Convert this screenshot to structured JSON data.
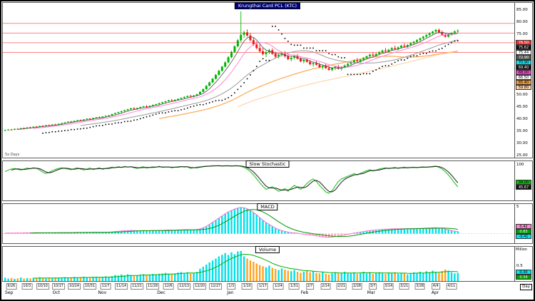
{
  "main_panel": {
    "title": "Krungthai Card PCL (KTC)",
    "corner_note": "5x Days",
    "y_axis": [
      "85.00",
      "80.00",
      "75.00",
      "70.00",
      "65.00",
      "60.00",
      "55.00",
      "50.00",
      "45.00",
      "40.00",
      "35.00",
      "30.00",
      "25.00"
    ],
    "value_boxes": [
      {
        "bg": "#ff2a2a",
        "fg": "#ffffff",
        "text": "76.50"
      },
      {
        "bg": "#111111",
        "fg": "#ffffff",
        "text": "75.62"
      },
      {
        "bg": "#ffffff",
        "fg": "#000000",
        "text": "75.44"
      },
      {
        "bg": "#555555",
        "fg": "#ffffff",
        "text": "72.90"
      },
      {
        "bg": "#00e5ee",
        "fg": "#000000",
        "text": "70.90"
      },
      {
        "bg": "#111111",
        "fg": "#ffffff",
        "text": "69.40"
      },
      {
        "bg": "#ff3bd4",
        "fg": "#000000",
        "text": "68.00"
      },
      {
        "bg": "#ffffff",
        "fg": "#000000",
        "text": "66.50"
      },
      {
        "bg": "#ff9b2a",
        "fg": "#000000",
        "text": "65.40"
      },
      {
        "bg": "#ffd2ae",
        "fg": "#000000",
        "text": "59.80"
      }
    ]
  },
  "stoch_panel": {
    "title": "Slow Stochastic",
    "top_label": "100",
    "value_boxes": [
      {
        "bg": "#00c000",
        "fg": "#000000",
        "text": "34.00"
      },
      {
        "bg": "#111111",
        "fg": "#ffffff",
        "text": "45.67"
      }
    ]
  },
  "macd_panel": {
    "title": "MACD",
    "top_label": "5",
    "zero_label": "0",
    "value_boxes": [
      {
        "bg": "#ff85d0",
        "fg": "#000000",
        "text": "0.42"
      },
      {
        "bg": "#00a000",
        "fg": "#ffffff",
        "text": "0.83"
      },
      {
        "bg": "#00e5ee",
        "fg": "#000000",
        "text": "-0.41"
      }
    ]
  },
  "volume_panel": {
    "title": "Volume",
    "unit": "Million",
    "mid_label": "0.5",
    "value_boxes": [
      {
        "bg": "#00e5ee",
        "fg": "#000000",
        "text": "0.30"
      },
      {
        "bg": "#00a000",
        "fg": "#ffffff",
        "text": "0.34"
      }
    ]
  },
  "x_axis": {
    "periodicity": "Day",
    "weeks": [
      "9/26",
      "10/3",
      "10/10",
      "10/17",
      "10/24",
      "10/31",
      "11/7",
      "11/14",
      "11/21",
      "11/28",
      "12/6",
      "12/13",
      "12/20",
      "12/27",
      "1/3",
      "1/10",
      "1/17",
      "1/24",
      "1/31",
      "2/7",
      "2/14",
      "2/21",
      "2/28",
      "3/7",
      "3/14",
      "3/21",
      "3/28",
      "4/4",
      "4/11"
    ],
    "months": [
      {
        "label": "Sep",
        "f": 0.008
      },
      {
        "label": "Oct",
        "f": 0.1
      },
      {
        "label": "Nov",
        "f": 0.19
      },
      {
        "label": "Dec",
        "f": 0.305
      },
      {
        "label": "Jan",
        "f": 0.44
      },
      {
        "label": "Feb",
        "f": 0.585
      },
      {
        "label": "Mar",
        "f": 0.715
      },
      {
        "label": "Apr",
        "f": 0.84
      }
    ]
  },
  "chart_data": {
    "type": "candlestick+indicators",
    "symbol": "Krungthai Card PCL (KTC)",
    "price_ylim": [
      24,
      88
    ],
    "levels": [
      79.5,
      75.5,
      71.5,
      67.5
    ],
    "sma_periods": [
      5,
      10,
      25,
      50,
      75
    ],
    "stoch_ylim": [
      0,
      100
    ],
    "macd_range": [
      -1.8,
      5.6
    ],
    "volume_max_million": 1.25,
    "candles": [
      [
        35.2,
        35.6,
        35.0,
        35.4
      ],
      [
        35.4,
        35.8,
        35.2,
        35.6
      ],
      [
        35.6,
        35.9,
        35.3,
        35.5
      ],
      [
        35.5,
        36.0,
        35.4,
        35.9
      ],
      [
        35.9,
        36.2,
        35.6,
        35.8
      ],
      [
        35.8,
        36.3,
        35.7,
        36.2
      ],
      [
        36.2,
        36.5,
        36.0,
        36.1
      ],
      [
        36.1,
        36.6,
        36.0,
        36.5
      ],
      [
        36.5,
        36.8,
        36.2,
        36.4
      ],
      [
        36.4,
        36.9,
        36.3,
        36.8
      ],
      [
        36.8,
        37.1,
        36.5,
        36.7
      ],
      [
        36.7,
        37.2,
        36.6,
        37.1
      ],
      [
        37.1,
        37.4,
        36.9,
        37.0
      ],
      [
        37.0,
        37.5,
        36.9,
        37.4
      ],
      [
        37.4,
        37.7,
        37.1,
        37.3
      ],
      [
        37.3,
        37.8,
        37.2,
        37.7
      ],
      [
        37.7,
        38.0,
        37.4,
        37.6
      ],
      [
        37.6,
        38.1,
        37.5,
        38.0
      ],
      [
        38.0,
        38.4,
        37.8,
        38.3
      ],
      [
        38.3,
        38.7,
        38.1,
        38.6
      ],
      [
        38.6,
        39.0,
        38.4,
        38.9
      ],
      [
        38.9,
        39.2,
        38.5,
        38.7
      ],
      [
        38.7,
        39.3,
        38.6,
        39.2
      ],
      [
        39.2,
        39.6,
        39.0,
        39.5
      ],
      [
        39.5,
        39.8,
        39.1,
        39.3
      ],
      [
        39.3,
        39.9,
        39.2,
        39.8
      ],
      [
        39.8,
        40.2,
        39.6,
        40.1
      ],
      [
        40.1,
        40.4,
        39.7,
        39.9
      ],
      [
        39.9,
        40.5,
        39.8,
        40.4
      ],
      [
        40.4,
        40.8,
        40.2,
        40.7
      ],
      [
        40.7,
        41.0,
        40.3,
        40.5
      ],
      [
        40.5,
        41.1,
        40.4,
        41.0
      ],
      [
        41.0,
        41.4,
        40.8,
        41.3
      ],
      [
        41.3,
        41.7,
        41.0,
        41.5
      ],
      [
        41.5,
        42.2,
        41.4,
        42.0
      ],
      [
        42.0,
        42.6,
        41.8,
        42.4
      ],
      [
        42.4,
        43.0,
        42.2,
        42.8
      ],
      [
        42.8,
        43.4,
        42.5,
        43.2
      ],
      [
        43.2,
        43.8,
        42.9,
        43.6
      ],
      [
        43.6,
        44.2,
        43.3,
        44.0
      ],
      [
        44.0,
        44.6,
        43.7,
        44.4
      ],
      [
        44.4,
        44.9,
        43.9,
        44.1
      ],
      [
        44.1,
        44.7,
        43.8,
        44.5
      ],
      [
        44.5,
        45.1,
        44.2,
        44.9
      ],
      [
        44.9,
        45.4,
        44.5,
        45.2
      ],
      [
        45.2,
        45.7,
        44.8,
        45.0
      ],
      [
        45.0,
        45.6,
        44.7,
        45.4
      ],
      [
        45.4,
        46.0,
        45.1,
        45.8
      ],
      [
        45.8,
        46.3,
        45.4,
        46.1
      ],
      [
        46.1,
        46.7,
        45.8,
        46.5
      ],
      [
        46.5,
        47.1,
        46.3,
        46.9
      ],
      [
        46.9,
        47.5,
        46.6,
        47.3
      ],
      [
        47.3,
        47.9,
        47.0,
        47.7
      ],
      [
        47.7,
        48.2,
        47.3,
        47.5
      ],
      [
        47.5,
        48.1,
        47.2,
        47.9
      ],
      [
        47.9,
        48.5,
        47.6,
        48.3
      ],
      [
        48.3,
        48.9,
        48.0,
        48.7
      ],
      [
        48.7,
        49.3,
        48.4,
        49.1
      ],
      [
        49.1,
        49.7,
        48.8,
        49.5
      ],
      [
        49.5,
        50.0,
        49.1,
        49.3
      ],
      [
        49.3,
        49.9,
        49.0,
        49.7
      ],
      [
        49.7,
        50.4,
        49.5,
        50.2
      ],
      [
        50.2,
        51.5,
        50.1,
        51.2
      ],
      [
        51.2,
        52.6,
        51.0,
        52.3
      ],
      [
        52.3,
        54.0,
        52.1,
        53.7
      ],
      [
        53.7,
        55.5,
        53.5,
        55.1
      ],
      [
        55.1,
        57.0,
        54.8,
        56.6
      ],
      [
        56.6,
        58.6,
        56.3,
        58.2
      ],
      [
        58.2,
        60.3,
        57.9,
        59.9
      ],
      [
        59.9,
        62.0,
        59.5,
        61.6
      ],
      [
        61.6,
        63.8,
        61.2,
        63.4
      ],
      [
        63.4,
        66.0,
        63.0,
        65.5
      ],
      [
        65.5,
        68.2,
        65.1,
        67.7
      ],
      [
        67.7,
        70.5,
        67.3,
        70.0
      ],
      [
        70.0,
        73.0,
        69.6,
        72.5
      ],
      [
        72.5,
        84.5,
        71.8,
        74.8
      ],
      [
        74.8,
        76.5,
        73.5,
        75.8
      ],
      [
        75.8,
        77.0,
        74.0,
        74.5
      ],
      [
        74.5,
        75.5,
        72.0,
        72.6
      ],
      [
        72.6,
        73.8,
        70.2,
        70.8
      ],
      [
        70.8,
        72.0,
        68.8,
        69.3
      ],
      [
        69.3,
        70.8,
        67.5,
        68.0
      ],
      [
        68.0,
        69.5,
        66.2,
        66.8
      ],
      [
        66.8,
        68.2,
        65.5,
        67.6
      ],
      [
        67.6,
        69.0,
        66.8,
        68.4
      ],
      [
        68.4,
        69.2,
        66.5,
        66.9
      ],
      [
        66.9,
        67.8,
        65.2,
        65.7
      ],
      [
        65.7,
        67.0,
        65.0,
        66.5
      ],
      [
        66.5,
        67.8,
        65.8,
        67.2
      ],
      [
        67.2,
        68.0,
        65.4,
        65.9
      ],
      [
        65.9,
        66.8,
        64.2,
        64.7
      ],
      [
        64.7,
        65.8,
        63.8,
        65.3
      ],
      [
        65.3,
        66.4,
        64.6,
        66.0
      ],
      [
        66.0,
        66.9,
        64.5,
        64.9
      ],
      [
        64.9,
        65.7,
        63.4,
        63.8
      ],
      [
        63.8,
        64.9,
        63.0,
        64.4
      ],
      [
        64.4,
        65.3,
        63.2,
        63.6
      ],
      [
        63.6,
        64.4,
        62.2,
        62.6
      ],
      [
        62.6,
        63.6,
        61.6,
        63.1
      ],
      [
        63.1,
        64.0,
        62.0,
        62.4
      ],
      [
        62.4,
        63.2,
        61.0,
        61.4
      ],
      [
        61.4,
        62.4,
        60.4,
        61.9
      ],
      [
        61.9,
        62.8,
        60.6,
        61.0
      ],
      [
        61.0,
        61.9,
        59.9,
        60.3
      ],
      [
        60.3,
        61.4,
        59.7,
        61.0
      ],
      [
        61.0,
        62.0,
        60.2,
        61.6
      ],
      [
        61.6,
        62.4,
        60.4,
        60.8
      ],
      [
        60.8,
        61.8,
        60.0,
        61.4
      ],
      [
        61.4,
        62.5,
        61.0,
        62.1
      ],
      [
        62.1,
        63.2,
        61.6,
        62.8
      ],
      [
        62.8,
        63.9,
        62.3,
        63.5
      ],
      [
        63.5,
        64.6,
        63.0,
        64.2
      ],
      [
        64.2,
        65.2,
        63.4,
        63.8
      ],
      [
        63.8,
        64.9,
        63.3,
        64.5
      ],
      [
        64.5,
        65.6,
        64.0,
        65.2
      ],
      [
        65.2,
        66.3,
        64.7,
        65.9
      ],
      [
        65.9,
        67.0,
        65.4,
        66.6
      ],
      [
        66.6,
        67.6,
        65.8,
        66.2
      ],
      [
        66.2,
        67.3,
        65.7,
        66.9
      ],
      [
        66.9,
        68.0,
        66.4,
        67.6
      ],
      [
        67.6,
        68.7,
        67.1,
        68.3
      ],
      [
        68.3,
        69.3,
        67.5,
        67.9
      ],
      [
        67.9,
        69.0,
        67.4,
        68.6
      ],
      [
        68.6,
        69.7,
        68.1,
        69.3
      ],
      [
        69.3,
        70.3,
        68.5,
        68.9
      ],
      [
        68.9,
        70.0,
        68.4,
        69.6
      ],
      [
        69.6,
        70.7,
        69.1,
        70.3
      ],
      [
        70.3,
        71.3,
        69.5,
        69.9
      ],
      [
        69.9,
        71.0,
        69.4,
        70.6
      ],
      [
        70.6,
        71.7,
        70.1,
        71.3
      ],
      [
        71.3,
        72.3,
        70.5,
        71.9
      ],
      [
        71.9,
        73.0,
        71.4,
        72.6
      ],
      [
        72.6,
        73.7,
        72.1,
        73.3
      ],
      [
        73.3,
        74.4,
        72.8,
        74.0
      ],
      [
        74.0,
        75.1,
        73.5,
        74.7
      ],
      [
        74.7,
        75.8,
        74.2,
        75.4
      ],
      [
        75.4,
        76.5,
        74.9,
        76.1
      ],
      [
        76.1,
        77.2,
        75.6,
        76.8
      ],
      [
        76.8,
        77.4,
        75.5,
        75.9
      ],
      [
        75.9,
        76.6,
        74.4,
        74.8
      ],
      [
        74.8,
        75.5,
        73.6,
        74.0
      ],
      [
        74.0,
        75.2,
        73.6,
        74.9
      ],
      [
        74.9,
        76.0,
        74.4,
        75.6
      ],
      [
        75.6,
        76.6,
        75.0,
        76.2
      ],
      [
        76.2,
        77.0,
        75.4,
        76.5
      ]
    ],
    "stochastic_k": [
      80,
      85,
      88,
      90,
      87,
      85,
      88,
      91,
      89,
      92,
      90,
      85,
      78,
      74,
      78,
      83,
      87,
      90,
      92,
      90,
      88,
      86,
      89,
      92,
      88,
      85,
      88,
      91,
      86,
      89,
      92,
      87,
      90,
      92,
      94,
      92,
      95,
      93,
      96,
      94,
      95,
      92,
      90,
      93,
      95,
      91,
      93,
      95,
      94,
      96,
      93,
      94,
      95,
      92,
      94,
      95,
      96,
      94,
      95,
      90,
      92,
      94,
      95,
      96,
      97,
      97,
      98,
      98,
      98,
      97,
      98,
      98,
      97,
      98,
      98,
      96,
      93,
      88,
      80,
      70,
      58,
      46,
      35,
      26,
      30,
      34,
      26,
      20,
      24,
      28,
      20,
      30,
      38,
      32,
      26,
      34,
      44,
      52,
      58,
      50,
      38,
      28,
      18,
      14,
      22,
      36,
      50,
      58,
      62,
      66,
      70,
      74,
      70,
      75,
      79,
      83,
      86,
      82,
      85,
      88,
      90,
      92,
      89,
      91,
      93,
      90,
      92,
      94,
      91,
      93,
      94,
      92,
      94,
      95,
      93,
      95,
      96,
      97,
      93,
      88,
      80,
      70,
      58,
      45,
      34
    ],
    "macd_line": [
      0.1,
      0.12,
      0.11,
      0.13,
      0.14,
      0.13,
      0.15,
      0.16,
      0.15,
      0.17,
      0.18,
      0.17,
      0.16,
      0.15,
      0.16,
      0.17,
      0.18,
      0.19,
      0.2,
      0.21,
      0.22,
      0.21,
      0.23,
      0.24,
      0.23,
      0.25,
      0.26,
      0.25,
      0.27,
      0.28,
      0.27,
      0.26,
      0.28,
      0.29,
      0.34,
      0.4,
      0.46,
      0.52,
      0.56,
      0.6,
      0.62,
      0.58,
      0.55,
      0.56,
      0.58,
      0.55,
      0.56,
      0.58,
      0.6,
      0.62,
      0.64,
      0.67,
      0.7,
      0.68,
      0.69,
      0.71,
      0.73,
      0.75,
      0.77,
      0.74,
      0.75,
      0.78,
      0.9,
      1.1,
      1.4,
      1.75,
      2.15,
      2.55,
      2.95,
      3.35,
      3.75,
      4.1,
      4.4,
      4.65,
      4.85,
      4.95,
      4.9,
      4.7,
      4.4,
      4.0,
      3.55,
      3.05,
      2.55,
      2.1,
      1.75,
      1.4,
      1.05,
      0.8,
      0.6,
      0.45,
      0.3,
      0.2,
      0.15,
      0.1,
      0.0,
      -0.1,
      -0.15,
      -0.25,
      -0.3,
      -0.4,
      -0.5,
      -0.6,
      -0.65,
      -0.7,
      -0.65,
      -0.55,
      -0.45,
      -0.35,
      -0.25,
      -0.12,
      0.0,
      0.12,
      0.2,
      0.3,
      0.4,
      0.5,
      0.6,
      0.65,
      0.7,
      0.76,
      0.82,
      0.86,
      0.88,
      0.9,
      0.92,
      0.93,
      0.94,
      0.95,
      0.96,
      0.96,
      0.97,
      0.98,
      1.0,
      1.02,
      1.05,
      1.08,
      1.1,
      1.12,
      1.08,
      1.0,
      0.88,
      0.75,
      0.6,
      0.48,
      0.42
    ],
    "volume": [
      0.12,
      0.09,
      0.11,
      0.08,
      0.1,
      0.13,
      0.09,
      0.11,
      0.1,
      0.12,
      0.1,
      0.14,
      0.11,
      0.09,
      0.12,
      0.1,
      0.13,
      0.11,
      0.12,
      0.14,
      0.11,
      0.13,
      0.15,
      0.12,
      0.14,
      0.16,
      0.13,
      0.12,
      0.15,
      0.16,
      0.13,
      0.14,
      0.17,
      0.14,
      0.18,
      0.22,
      0.2,
      0.24,
      0.21,
      0.25,
      0.22,
      0.18,
      0.2,
      0.23,
      0.25,
      0.21,
      0.23,
      0.26,
      0.24,
      0.27,
      0.28,
      0.3,
      0.27,
      0.25,
      0.28,
      0.31,
      0.33,
      0.3,
      0.32,
      0.27,
      0.3,
      0.33,
      0.45,
      0.52,
      0.6,
      0.68,
      0.75,
      0.82,
      0.9,
      0.96,
      1.02,
      0.95,
      1.05,
      0.98,
      1.08,
      1.1,
      0.9,
      0.82,
      0.75,
      0.7,
      0.64,
      0.58,
      0.54,
      0.5,
      0.56,
      0.48,
      0.44,
      0.4,
      0.46,
      0.42,
      0.38,
      0.36,
      0.4,
      0.34,
      0.3,
      0.34,
      0.38,
      0.32,
      0.36,
      0.3,
      0.28,
      0.32,
      0.26,
      0.24,
      0.28,
      0.32,
      0.28,
      0.3,
      0.34,
      0.3,
      0.28,
      0.32,
      0.26,
      0.3,
      0.34,
      0.28,
      0.32,
      0.26,
      0.3,
      0.32,
      0.28,
      0.26,
      0.3,
      0.28,
      0.32,
      0.26,
      0.3,
      0.28,
      0.24,
      0.28,
      0.32,
      0.3,
      0.34,
      0.3,
      0.36,
      0.32,
      0.38,
      0.34,
      0.3,
      0.36,
      0.42,
      0.38,
      0.32,
      0.28,
      0.3
    ]
  }
}
